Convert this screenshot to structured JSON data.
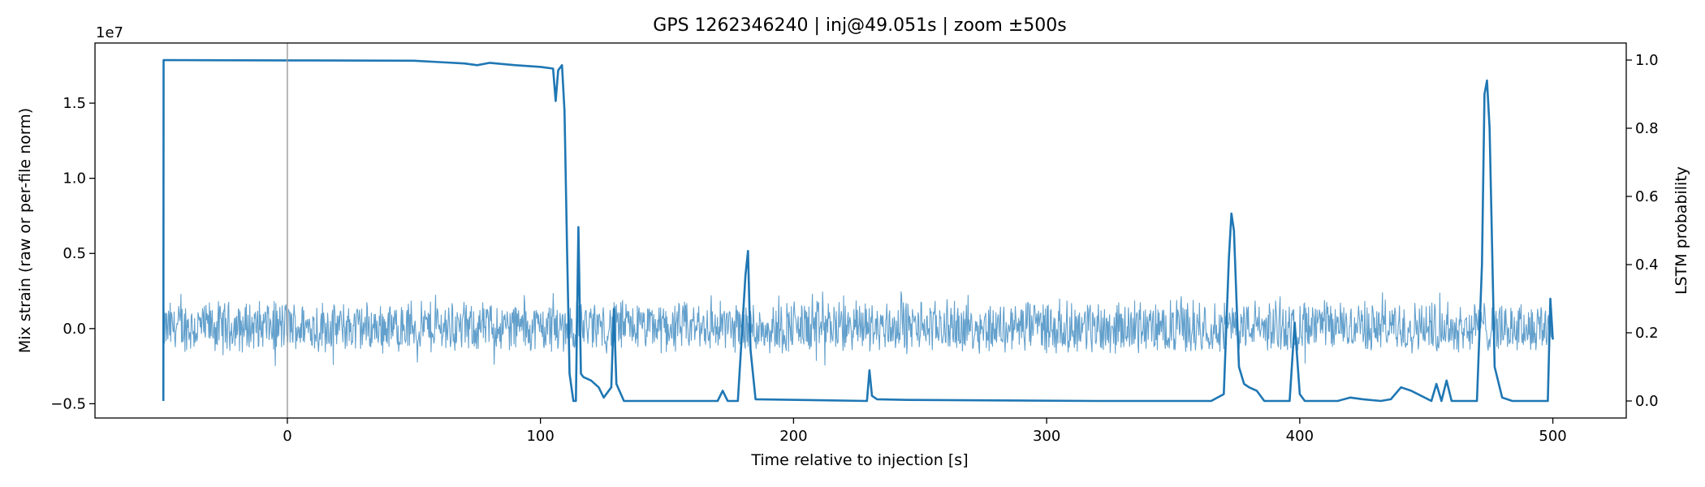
{
  "chart_data": {
    "type": "line",
    "title": "GPS 1262346240 | inj@49.051s | zoom ±500s",
    "xlabel": "Time relative to injection [s]",
    "ylabel_left": "Mix strain (raw or per-file norm)",
    "ylabel_right": "LSTM probability",
    "left_axis_offset_label": "1e7",
    "xlim": [
      -76,
      529
    ],
    "ylim_left": [
      -5.95,
      19.0
    ],
    "ylim_right": [
      -0.05,
      1.05
    ],
    "x_ticks": [
      0,
      100,
      200,
      300,
      400,
      500
    ],
    "x_tick_labels": [
      "0",
      "100",
      "200",
      "300",
      "400",
      "500"
    ],
    "y_left_ticks": [
      -5.0,
      0.0,
      5.0,
      10.0,
      15.0
    ],
    "y_left_tick_labels": [
      "−0.5",
      "0.0",
      "0.5",
      "1.0",
      "1.5"
    ],
    "y_right_ticks": [
      0.0,
      0.2,
      0.4,
      0.6,
      0.8,
      1.0
    ],
    "y_right_tick_labels": [
      "0.0",
      "0.2",
      "0.4",
      "0.6",
      "0.8",
      "1.0"
    ],
    "injection_marker_x": 0,
    "strain_series": {
      "name": "",
      "color": "#5b9bc9",
      "x_range": [
        -49,
        500
      ],
      "typical_amplitude": [
        -1.8,
        2.0
      ],
      "max_amplitude": 2.5
    },
    "probability_series": {
      "name": "",
      "color": "#1f77b4",
      "points": [
        [
          -49.0,
          0.0
        ],
        [
          -48.9,
          1.0
        ],
        [
          0,
          0.999
        ],
        [
          50,
          0.998
        ],
        [
          60,
          0.994
        ],
        [
          70,
          0.99
        ],
        [
          75,
          0.985
        ],
        [
          80,
          0.992
        ],
        [
          90,
          0.985
        ],
        [
          100,
          0.98
        ],
        [
          105,
          0.975
        ],
        [
          106,
          0.88
        ],
        [
          107,
          0.97
        ],
        [
          108.5,
          0.985
        ],
        [
          109.5,
          0.85
        ],
        [
          110.5,
          0.45
        ],
        [
          111.5,
          0.08
        ],
        [
          113,
          0.0
        ],
        [
          114,
          0.0
        ],
        [
          115,
          0.51
        ],
        [
          116,
          0.08
        ],
        [
          117,
          0.07
        ],
        [
          120,
          0.06
        ],
        [
          123,
          0.04
        ],
        [
          125,
          0.01
        ],
        [
          128,
          0.04
        ],
        [
          129,
          0.27
        ],
        [
          130,
          0.05
        ],
        [
          133,
          0.0
        ],
        [
          170,
          0.0
        ],
        [
          172,
          0.03
        ],
        [
          174,
          0.0
        ],
        [
          178,
          0.0
        ],
        [
          181,
          0.37
        ],
        [
          182,
          0.44
        ],
        [
          183,
          0.15
        ],
        [
          185,
          0.005
        ],
        [
          229,
          0.0
        ],
        [
          230,
          0.09
        ],
        [
          231,
          0.015
        ],
        [
          233,
          0.005
        ],
        [
          245,
          0.003
        ],
        [
          320,
          0.0
        ],
        [
          365,
          0.0
        ],
        [
          370,
          0.02
        ],
        [
          372,
          0.42
        ],
        [
          373,
          0.55
        ],
        [
          374,
          0.5
        ],
        [
          376,
          0.1
        ],
        [
          378,
          0.05
        ],
        [
          380,
          0.04
        ],
        [
          383,
          0.03
        ],
        [
          386,
          0.0
        ],
        [
          396,
          0.0
        ],
        [
          398,
          0.23
        ],
        [
          400,
          0.02
        ],
        [
          402,
          0.0
        ],
        [
          415,
          0.0
        ],
        [
          420,
          0.01
        ],
        [
          425,
          0.005
        ],
        [
          432,
          0.0
        ],
        [
          436,
          0.005
        ],
        [
          440,
          0.04
        ],
        [
          444,
          0.03
        ],
        [
          448,
          0.015
        ],
        [
          452,
          0.0
        ],
        [
          454,
          0.05
        ],
        [
          456,
          0.0
        ],
        [
          458,
          0.06
        ],
        [
          460,
          0.0
        ],
        [
          470,
          0.0
        ],
        [
          472,
          0.4
        ],
        [
          473,
          0.9
        ],
        [
          474,
          0.94
        ],
        [
          475,
          0.8
        ],
        [
          477,
          0.1
        ],
        [
          480,
          0.01
        ],
        [
          484,
          0.0
        ],
        [
          498,
          0.0
        ],
        [
          499,
          0.3
        ],
        [
          500,
          0.18
        ]
      ]
    }
  }
}
